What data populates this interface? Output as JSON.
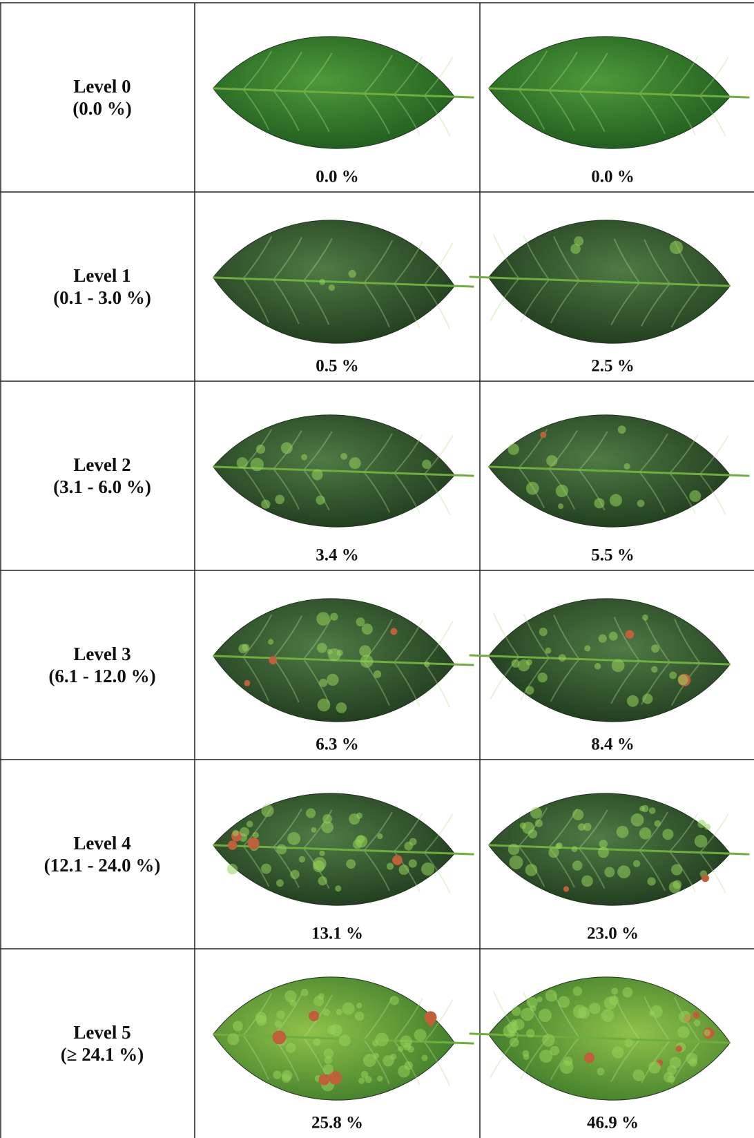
{
  "table": {
    "rows": [
      {
        "level": "Level 0",
        "range": "(0.0 %)",
        "samples": [
          "0.0 %",
          "0.0 %"
        ]
      },
      {
        "level": "Level 1",
        "range": "(0.1 - 3.0 %)",
        "samples": [
          "0.5 %",
          "2.5 %"
        ]
      },
      {
        "level": "Level 2",
        "range": "(3.1 - 6.0 %)",
        "samples": [
          "3.4 %",
          "5.5 %"
        ]
      },
      {
        "level": "Level 3",
        "range": "(6.1 - 12.0 %)",
        "samples": [
          "6.3 %",
          "8.4 %"
        ]
      },
      {
        "level": "Level 4",
        "range": "(12.1 - 24.0 %)",
        "samples": [
          "13.1 %",
          "23.0 %"
        ]
      },
      {
        "level": "Level 5",
        "range": "(≥ 24.1 %)",
        "samples": [
          "25.8 %",
          "46.9 %"
        ]
      }
    ]
  }
}
